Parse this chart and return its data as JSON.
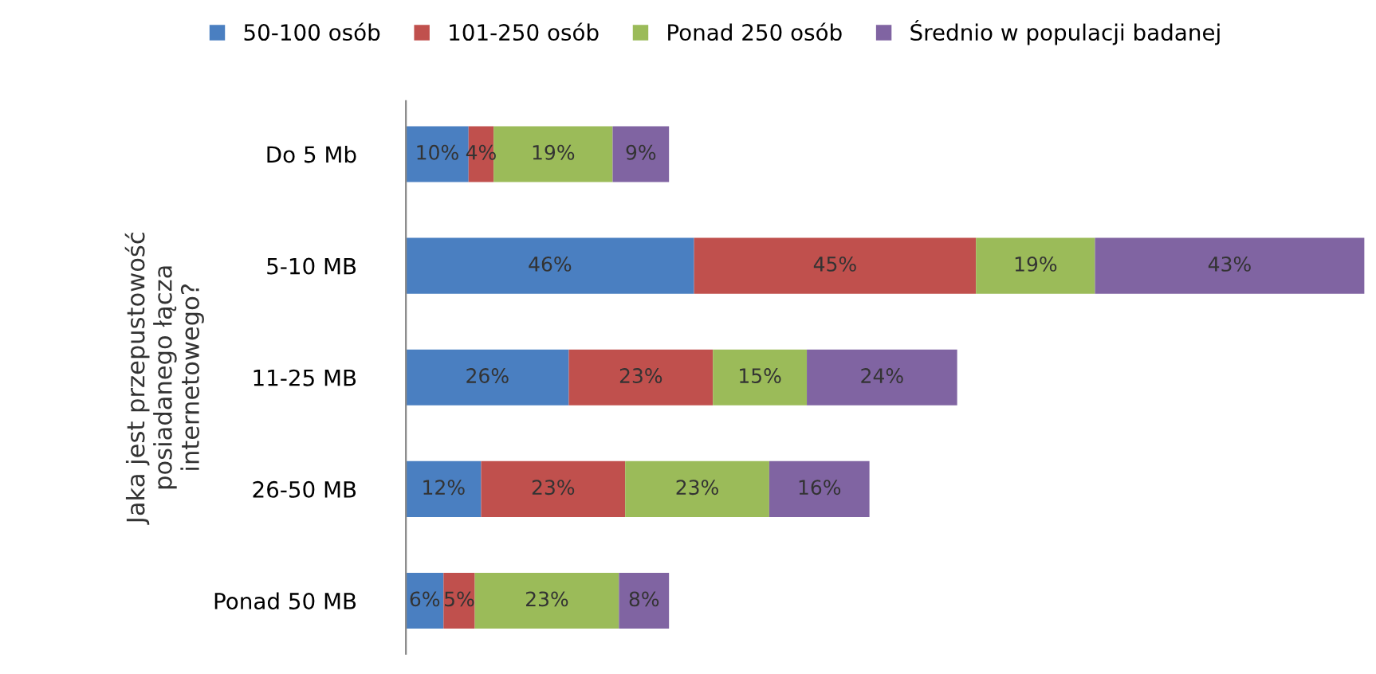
{
  "chart_data": {
    "type": "bar",
    "orientation": "horizontal",
    "stacked": true,
    "legend": "top",
    "grid": false,
    "tick_labels": "y",
    "ylabel": "Jaka jest przepustowość\nposiadanego łącza\ninternetowego?",
    "categories": [
      "Do 5 Mb",
      "5-10 MB",
      "11-25 MB",
      "26-50 MB",
      "Ponad 50 MB"
    ],
    "series": [
      {
        "name": "50-100 osób",
        "color": "#4a7fc1",
        "values": [
          10,
          46,
          26,
          12,
          6
        ],
        "value_labels": [
          "10%",
          "46%",
          "26%",
          "12%",
          "6%"
        ]
      },
      {
        "name": "101-250 osób",
        "color": "#c0504d",
        "values": [
          4,
          45,
          23,
          23,
          5
        ],
        "value_labels": [
          "4%",
          "45%",
          "23%",
          "23%",
          "5%"
        ]
      },
      {
        "name": "Ponad 250 osób",
        "color": "#9bbb59",
        "values": [
          19,
          19,
          15,
          23,
          23
        ],
        "value_labels": [
          "19%",
          "19%",
          "15%",
          "23%",
          "23%"
        ]
      },
      {
        "name": "Średnio w populacji badanej",
        "color": "#8064a2",
        "values": [
          9,
          43,
          24,
          16,
          8
        ],
        "value_labels": [
          "9%",
          "43%",
          "24%",
          "16%",
          "8%"
        ]
      }
    ]
  }
}
